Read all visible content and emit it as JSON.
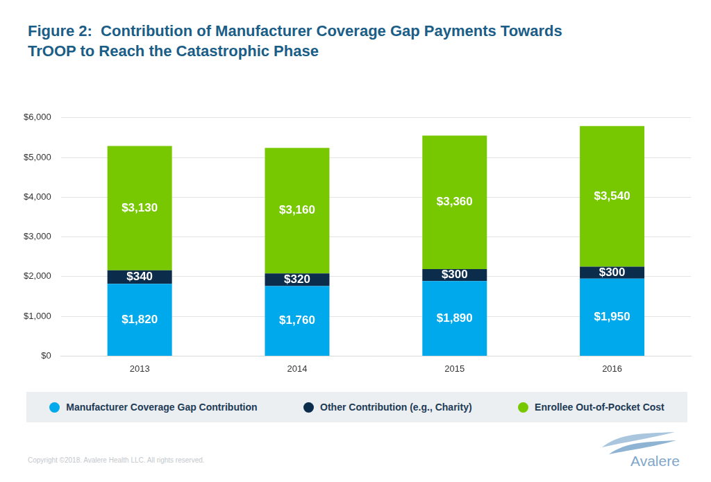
{
  "chart_data": {
    "type": "bar",
    "title": [
      "Figure 2:  Contribution of Manufacturer Coverage Gap Payments Towards",
      "TrOOP to Reach the Catastrophic Phase"
    ],
    "categories": [
      "2013",
      "2014",
      "2015",
      "2016"
    ],
    "series": [
      {
        "name": "Manufacturer Coverage Gap Contribution",
        "color": "#00a8ec",
        "values": [
          1820,
          1760,
          1890,
          1950
        ],
        "value_labels": [
          "$1,820",
          "$1,760",
          "$1,890",
          "$1,950"
        ]
      },
      {
        "name": "Other Contribution (e.g., Charity)",
        "color": "#0c2c4b",
        "values": [
          340,
          320,
          300,
          300
        ],
        "value_labels": [
          "$340",
          "$320",
          "$300",
          "$300"
        ]
      },
      {
        "name": "Enrollee Out-of-Pocket Cost",
        "color": "#77c800",
        "values": [
          3130,
          3160,
          3360,
          3540
        ],
        "value_labels": [
          "$3,130",
          "$3,160",
          "$3,360",
          "$3,540"
        ]
      }
    ],
    "ylim": [
      0,
      6000
    ],
    "yticks": [
      {
        "value": 0,
        "label": "$0"
      },
      {
        "value": 1000,
        "label": "$1,000"
      },
      {
        "value": 2000,
        "label": "$2,000"
      },
      {
        "value": 3000,
        "label": "$3,000"
      },
      {
        "value": 4000,
        "label": "$4,000"
      },
      {
        "value": 5000,
        "label": "$5,000"
      },
      {
        "value": 6000,
        "label": "$6,000"
      }
    ],
    "grid": true,
    "stacked": true,
    "data_labels": true,
    "legend": "bottom",
    "annotations": [
      "Copyright ©2018. Avalere Health LLC. All rights reserved.",
      "Avalere"
    ]
  }
}
